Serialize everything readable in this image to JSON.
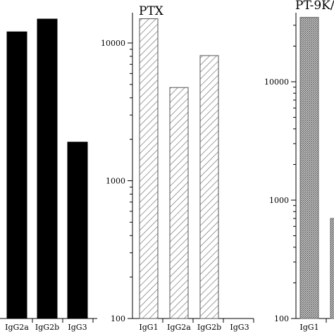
{
  "chart_data": [
    {
      "type": "bar",
      "title": "",
      "yscale": "log",
      "categories": [
        "IgG2a",
        "IgG2b",
        "IgG3"
      ],
      "values": [
        12500,
        15500,
        1950
      ],
      "ylim": [
        100,
        20000
      ],
      "bar_color": "#000000",
      "fill": "solid"
    },
    {
      "type": "bar",
      "title": "PTX",
      "yscale": "log",
      "categories": [
        "IgG1",
        "IgG2a",
        "IgG2b",
        "IgG3"
      ],
      "values": [
        15000,
        4750,
        8100,
        null
      ],
      "ylim": [
        100,
        16000
      ],
      "yticks": [
        100,
        1000,
        10000
      ],
      "yticklabels": [
        "100",
        "1000",
        "10000"
      ],
      "bar_color": "#777777",
      "fill": "hatched"
    },
    {
      "type": "bar",
      "title": "PT-9K/",
      "yscale": "log",
      "categories": [
        "IgG1",
        ""
      ],
      "values": [
        35000,
        700
      ],
      "ylim": [
        100,
        36000
      ],
      "yticks": [
        100,
        1000,
        10000
      ],
      "yticklabels": [
        "100",
        "1000",
        "10000"
      ],
      "bar_color": "#888888",
      "fill": "stippled"
    }
  ]
}
